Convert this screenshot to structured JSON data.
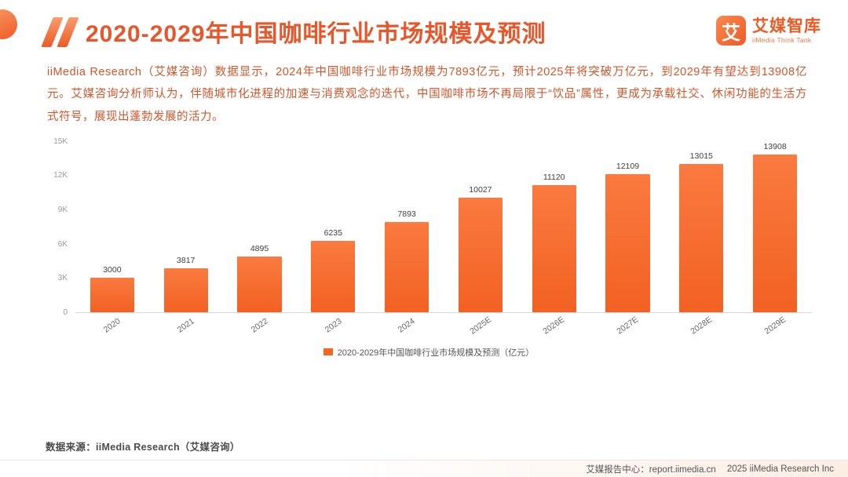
{
  "accent": "#ee5a24",
  "header": {
    "title": "2020-2029年中国咖啡行业市场规模及预测",
    "logo": {
      "icon": "艾",
      "name": "艾媒智库",
      "subtitle": "iiMedia Think Tank"
    }
  },
  "intro": {
    "paragraph": "iiMedia Research（艾媒咨询）数据显示，2024年中国咖啡行业市场规模为7893亿元，预计2025年将突破万亿元，到2029年有望达到13908亿元。艾媒咨询分析师认为，伴随城市化进程的加速与消费观念的迭代，中国咖啡市场不再局限于“饮品”属性，更成为承载社交、休闲功能的生活方式符号，展现出蓬勃发展的活力。"
  },
  "chart_data": {
    "type": "bar",
    "categories": [
      "2020",
      "2021",
      "2022",
      "2023",
      "2024",
      "2025E",
      "2026E",
      "2027E",
      "2028E",
      "2029E"
    ],
    "values": [
      3000,
      3817,
      4895,
      6235,
      7893,
      10027,
      11120,
      12109,
      13015,
      13908
    ],
    "title": "2020-2029年中国咖啡行业市场规模及预测",
    "legend": "2020-2029年中国咖啡行业市场规模及预测（亿元）",
    "xlabel": "",
    "ylabel": "",
    "ylim": [
      0,
      15000
    ],
    "yticks": [
      "0",
      "3K",
      "6K",
      "9K",
      "12K",
      "15K"
    ],
    "bar_color": "#f2661f",
    "grid": false,
    "legend_position": "bottom"
  },
  "footer": {
    "source": "数据来源：iiMedia Research（艾媒咨询）",
    "report_center": "艾媒报告中心：report.iimedia.cn",
    "copyright": "2025 iiMedia Research Inc"
  }
}
